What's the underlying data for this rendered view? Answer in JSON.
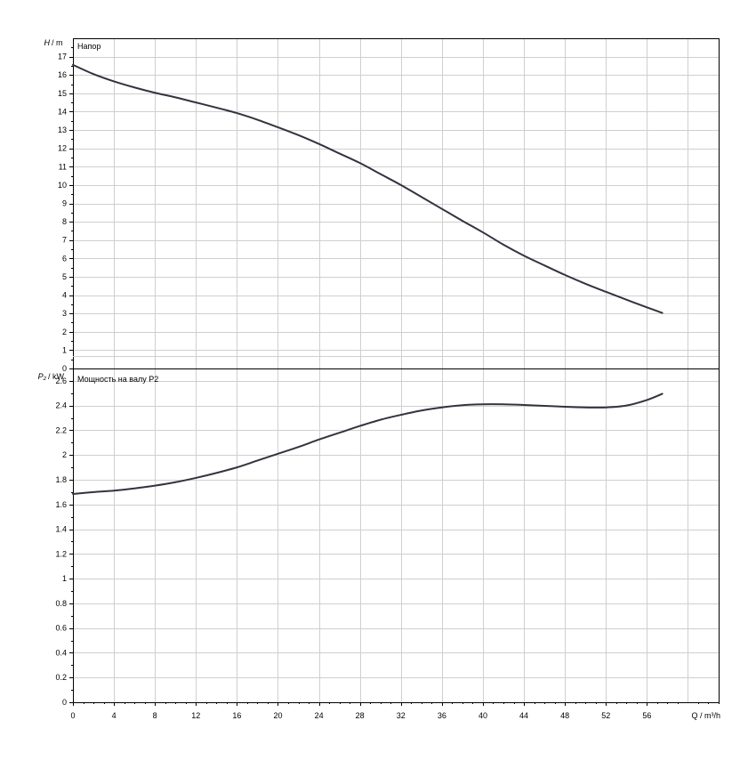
{
  "chart_data": [
    {
      "type": "line",
      "title": "Напор",
      "ylabel_symbol": "H",
      "ylabel_unit": "/ m",
      "xlim": [
        0,
        63
      ],
      "ylim": [
        0,
        18
      ],
      "y_ticks": [
        0,
        1,
        2,
        3,
        4,
        5,
        6,
        7,
        8,
        9,
        10,
        11,
        12,
        13,
        14,
        15,
        16,
        17
      ],
      "y_tick_labels": [
        "0",
        "1",
        "2",
        "3",
        "4",
        "5",
        "6",
        "7",
        "8",
        "9",
        "10",
        "11",
        "12",
        "13",
        "14",
        "15",
        "16",
        "17"
      ],
      "x_grid_step": 4,
      "y_grid_step": 1,
      "grid": true,
      "series": [
        {
          "color": "#333340",
          "x": [
            0,
            2,
            4,
            6,
            8,
            10,
            12,
            14,
            16,
            18,
            20,
            22,
            24,
            26,
            28,
            30,
            32,
            34,
            36,
            38,
            40,
            42,
            44,
            46,
            48,
            50,
            52,
            54,
            56,
            57.5
          ],
          "y": [
            16.55,
            16.05,
            15.65,
            15.32,
            15.03,
            14.78,
            14.5,
            14.22,
            13.92,
            13.56,
            13.15,
            12.72,
            12.24,
            11.72,
            11.2,
            10.6,
            10.0,
            9.35,
            8.7,
            8.05,
            7.42,
            6.75,
            6.15,
            5.62,
            5.1,
            4.62,
            4.18,
            3.75,
            3.33,
            3.03
          ]
        }
      ]
    },
    {
      "type": "line",
      "title": "Мощность на валу P2",
      "ylabel_symbol": "P₂",
      "ylabel_unit": "/ kW",
      "xlabel": "Q / m³/h",
      "xlim": [
        0,
        63
      ],
      "ylim": [
        0,
        2.7
      ],
      "x_ticks": [
        0,
        4,
        8,
        12,
        16,
        20,
        24,
        28,
        32,
        36,
        40,
        44,
        48,
        52,
        56
      ],
      "x_tick_labels": [
        "0",
        "4",
        "8",
        "12",
        "16",
        "20",
        "24",
        "28",
        "32",
        "36",
        "40",
        "44",
        "48",
        "52",
        "56"
      ],
      "y_ticks": [
        0,
        0.2,
        0.4,
        0.6,
        0.8,
        1.0,
        1.2,
        1.4,
        1.6,
        1.8,
        2.0,
        2.2,
        2.4,
        2.6
      ],
      "y_tick_labels": [
        "0",
        "0.2",
        "0.4",
        "0.6",
        "0.8",
        "1",
        "1.2",
        "1.4",
        "1.6",
        "1.8",
        "2",
        "2.2",
        "2.4",
        "2.6"
      ],
      "x_grid_step": 4,
      "y_grid_step": 0.2,
      "grid": true,
      "series": [
        {
          "color": "#333340",
          "x": [
            0,
            2,
            4,
            6,
            8,
            10,
            12,
            14,
            16,
            18,
            20,
            22,
            24,
            26,
            28,
            30,
            32,
            34,
            36,
            38,
            40,
            42,
            44,
            46,
            48,
            50,
            52,
            54,
            56,
            57.5
          ],
          "y": [
            1.685,
            1.7,
            1.712,
            1.73,
            1.752,
            1.78,
            1.815,
            1.855,
            1.9,
            1.955,
            2.01,
            2.065,
            2.125,
            2.18,
            2.235,
            2.285,
            2.325,
            2.36,
            2.385,
            2.403,
            2.41,
            2.41,
            2.405,
            2.398,
            2.39,
            2.385,
            2.385,
            2.4,
            2.445,
            2.495
          ]
        }
      ]
    }
  ]
}
